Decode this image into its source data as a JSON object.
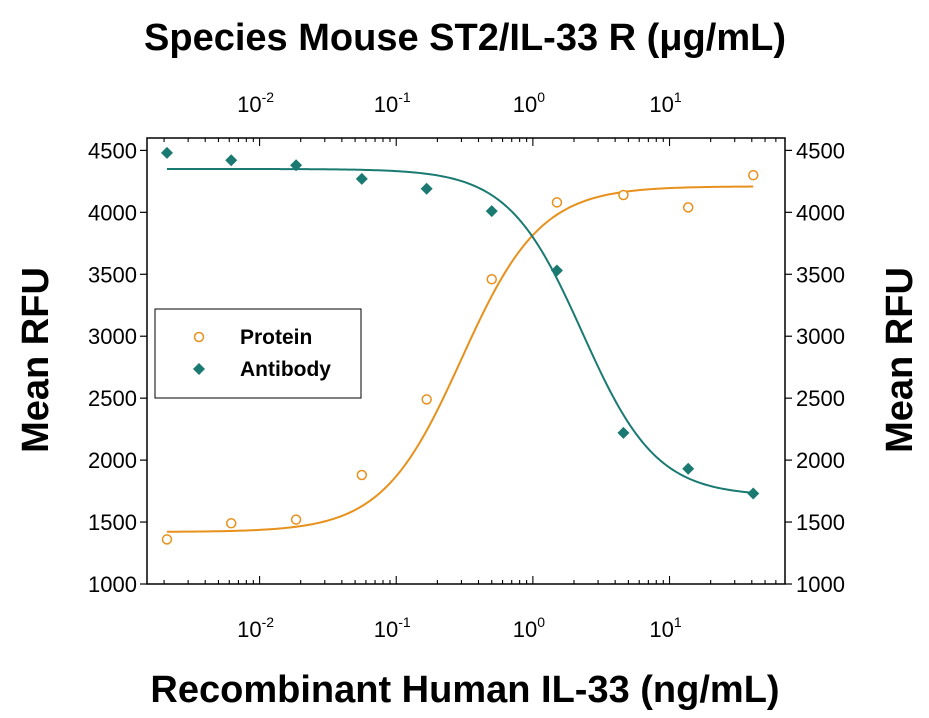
{
  "chart_data": {
    "type": "scatter",
    "title": "Species Mouse ST2/IL-33 R (μg/mL)",
    "xlabel": "Recombinant Human IL-33 (ng/mL)",
    "ylabel_left": "Mean RFU",
    "ylabel_right": "Mean RFU",
    "x_scale": "log",
    "xlim": [
      0.0015,
      70
    ],
    "ylim": [
      1000,
      4600
    ],
    "y_ticks": [
      "1000",
      "1500",
      "2000",
      "2500",
      "3000",
      "3500",
      "4000",
      "4500"
    ],
    "x_ticks_bottom": [
      {
        "base": "10",
        "exp": "-2",
        "value": 0.01
      },
      {
        "base": "10",
        "exp": "-1",
        "value": 0.1
      },
      {
        "base": "10",
        "exp": "0",
        "value": 1
      },
      {
        "base": "10",
        "exp": "1",
        "value": 10
      }
    ],
    "x_ticks_top": [
      {
        "base": "10",
        "exp": "-2",
        "value": 0.01
      },
      {
        "base": "10",
        "exp": "-1",
        "value": 0.1
      },
      {
        "base": "10",
        "exp": "0",
        "value": 1
      },
      {
        "base": "10",
        "exp": "1",
        "value": 10
      }
    ],
    "legend": {
      "position": "left",
      "entries": [
        "Protein",
        "Antibody"
      ]
    },
    "series": [
      {
        "name": "Protein",
        "marker": "open-circle",
        "color": "#E8901C",
        "x": [
          0.0021,
          0.0062,
          0.0185,
          0.056,
          0.167,
          0.5,
          1.5,
          4.6,
          13.7,
          41
        ],
        "y": [
          1360,
          1490,
          1520,
          1880,
          2490,
          3460,
          4080,
          4140,
          4040,
          4300
        ],
        "fit": {
          "bottom": 1420,
          "top": 4210,
          "ec50": 0.3,
          "hill": 1.5
        }
      },
      {
        "name": "Antibody",
        "marker": "filled-diamond",
        "color": "#1A7A72",
        "x": [
          0.0021,
          0.0062,
          0.0185,
          0.056,
          0.167,
          0.5,
          1.5,
          4.6,
          13.7,
          41
        ],
        "y": [
          4480,
          4420,
          4380,
          4270,
          4190,
          4010,
          3530,
          2220,
          1930,
          1730
        ],
        "fit": {
          "top": 4350,
          "bottom": 1710,
          "ec50": 2.3,
          "hill": 1.6
        }
      }
    ]
  }
}
